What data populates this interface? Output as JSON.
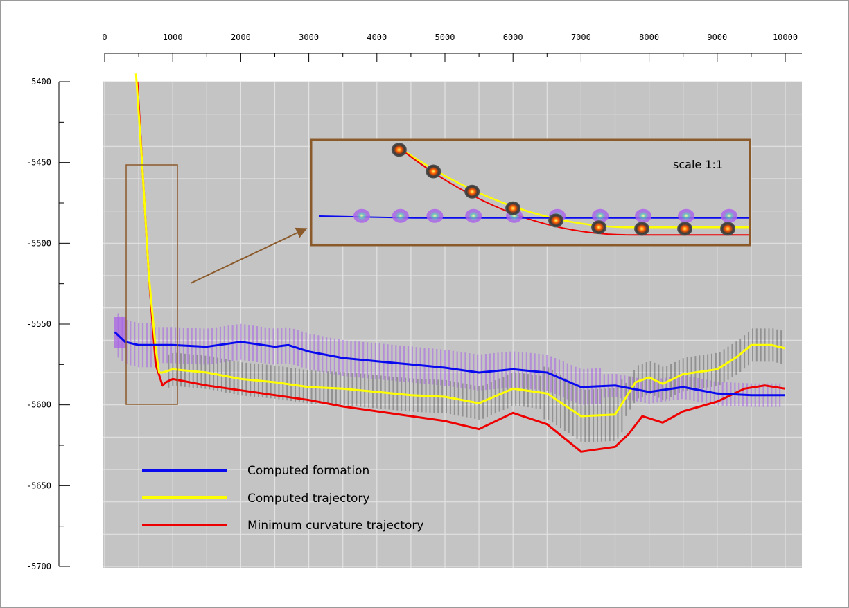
{
  "chart_data": {
    "type": "line",
    "xlim": [
      0,
      10000
    ],
    "ylim": [
      -5700,
      -5400
    ],
    "x_ticks": [
      0,
      1000,
      2000,
      3000,
      4000,
      5000,
      6000,
      7000,
      8000,
      9000,
      10000
    ],
    "y_ticks": [
      -5400,
      -5450,
      -5500,
      -5550,
      -5600,
      -5650,
      -5700
    ],
    "x_tick_labels": [
      "0",
      "1000",
      "2000",
      "3000",
      "4000",
      "5000",
      "6000",
      "7000",
      "8000",
      "9000",
      "10000"
    ],
    "y_tick_labels": [
      "-5400",
      "-5450",
      "-5500",
      "-5550",
      "-5600",
      "-5650",
      "-5700"
    ],
    "x_axis_position": "top",
    "grid": true,
    "legend_position": "bottom-left",
    "colors": {
      "formation": "#0a0aee",
      "trajectory": "#ffff00",
      "min_curvature": "#ee0000",
      "plot_bg": "#c4c4c4",
      "grid": "#e2e2e2",
      "inset_border": "#8b5a2b"
    },
    "series": [
      {
        "name": "Computed formation",
        "color": "#0a0aee",
        "x": [
          150,
          300,
          500,
          800,
          1000,
          1500,
          2000,
          2500,
          2700,
          3000,
          3500,
          4000,
          4500,
          5000,
          5500,
          6000,
          6500,
          7000,
          7500,
          8000,
          8500,
          9000,
          9500,
          10000
        ],
        "y": [
          -5555,
          -5561,
          -5563,
          -5563,
          -5563,
          -5564,
          -5561,
          -5564,
          -5563,
          -5567,
          -5571,
          -5573,
          -5575,
          -5577,
          -5580,
          -5578,
          -5580,
          -5589,
          -5588,
          -5592,
          -5589,
          -5593,
          -5594,
          -5594
        ]
      },
      {
        "name": "Computed trajectory",
        "color": "#ffff00",
        "x": [
          460,
          550,
          650,
          750,
          800,
          850,
          1000,
          1500,
          2000,
          2500,
          3000,
          3500,
          4000,
          4500,
          5000,
          5500,
          6000,
          6500,
          7000,
          7500,
          7800,
          8000,
          8200,
          8500,
          9000,
          9300,
          9500,
          9800,
          10000
        ],
        "y": [
          -5395,
          -5450,
          -5520,
          -5565,
          -5580,
          -5580,
          -5578,
          -5580,
          -5584,
          -5586,
          -5589,
          -5590,
          -5592,
          -5594,
          -5595,
          -5599,
          -5590,
          -5593,
          -5607,
          -5606,
          -5586,
          -5583,
          -5587,
          -5581,
          -5578,
          -5570,
          -5563,
          -5563,
          -5565
        ]
      },
      {
        "name": "Minimum curvature trajectory",
        "color": "#ee0000",
        "x": [
          480,
          550,
          650,
          750,
          850,
          900,
          1000,
          1500,
          2000,
          2500,
          3000,
          3500,
          4000,
          4500,
          5000,
          5500,
          6000,
          6500,
          7000,
          7500,
          7700,
          7900,
          8200,
          8500,
          9000,
          9400,
          9700,
          10000
        ],
        "y": [
          -5400,
          -5450,
          -5520,
          -5575,
          -5588,
          -5586,
          -5584,
          -5588,
          -5591,
          -5594,
          -5597,
          -5601,
          -5604,
          -5607,
          -5610,
          -5615,
          -5605,
          -5612,
          -5629,
          -5626,
          -5618,
          -5607,
          -5611,
          -5604,
          -5598,
          -5590,
          -5588,
          -5590
        ]
      }
    ],
    "inset": {
      "label": "scale 1:1"
    }
  }
}
